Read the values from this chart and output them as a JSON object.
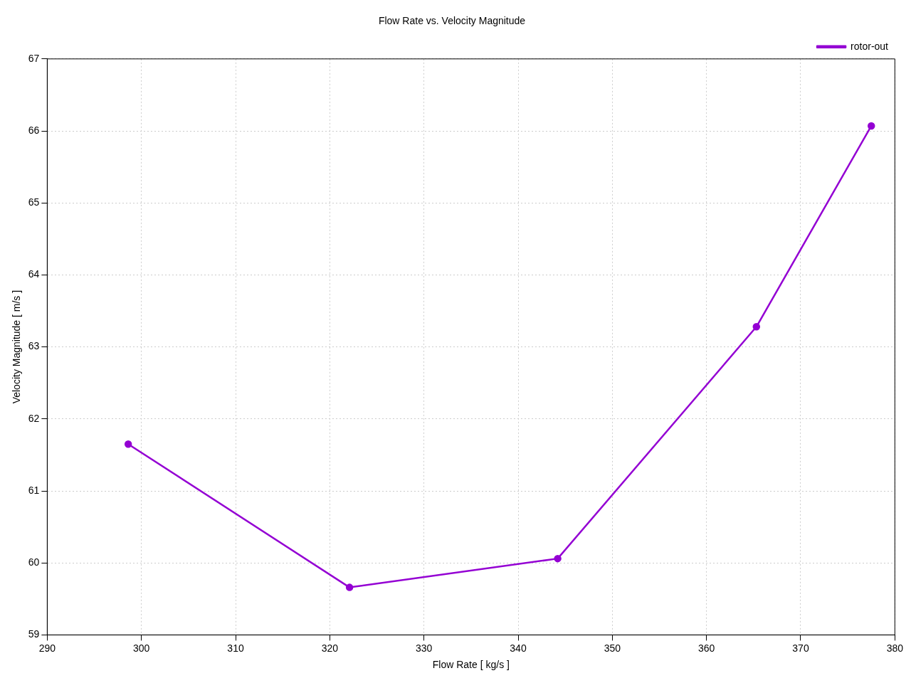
{
  "chart_data": {
    "type": "line",
    "title": "Flow Rate vs. Velocity Magnitude",
    "xlabel": "Flow Rate [ kg/s ]",
    "ylabel": "Velocity Magnitude [ m/s ]",
    "x": [
      298.6,
      322.1,
      344.2,
      365.3,
      377.5
    ],
    "series": [
      {
        "name": "rotor-out",
        "color": "#9400d3",
        "values": [
          61.65,
          59.66,
          60.06,
          63.28,
          66.07
        ]
      }
    ],
    "xlim": [
      290,
      380
    ],
    "xticks": [
      290,
      300,
      310,
      320,
      330,
      340,
      350,
      360,
      370,
      380
    ],
    "ylim": [
      59,
      67
    ],
    "yticks": [
      59,
      60,
      61,
      62,
      63,
      64,
      65,
      66,
      67
    ],
    "grid": true,
    "legend": "top right",
    "marker": "circle",
    "line_style": "solid"
  }
}
